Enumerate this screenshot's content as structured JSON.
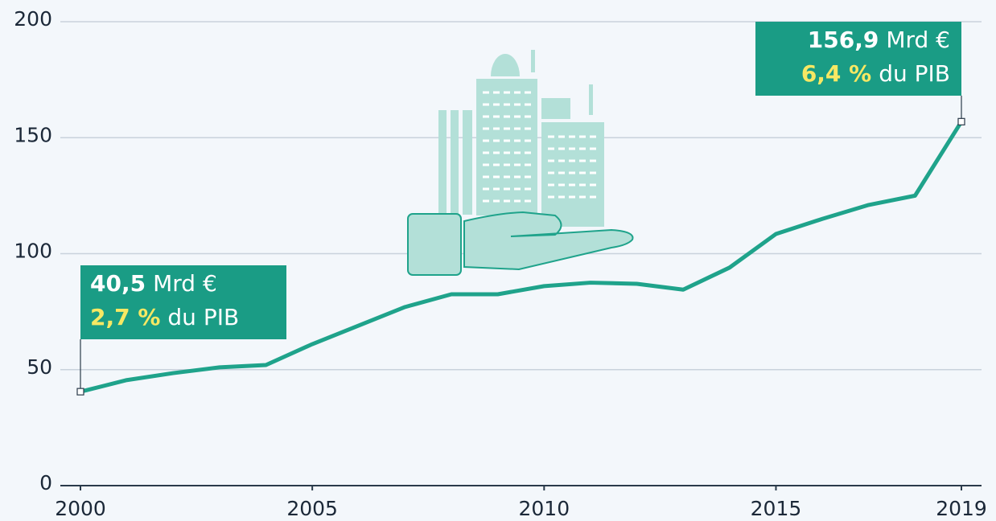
{
  "chart_data": {
    "type": "line",
    "x": [
      2000,
      2001,
      2002,
      2003,
      2004,
      2005,
      2006,
      2007,
      2008,
      2009,
      2010,
      2011,
      2012,
      2013,
      2014,
      2015,
      2016,
      2017,
      2018,
      2019
    ],
    "values": [
      40.5,
      45.5,
      48.5,
      51,
      52,
      61,
      69,
      77,
      82.5,
      82.5,
      86,
      87.5,
      87,
      84.5,
      94,
      108.5,
      115,
      121,
      125,
      156.9
    ],
    "value_labels": [
      "40,5",
      null,
      null,
      null,
      null,
      null,
      null,
      null,
      null,
      null,
      null,
      null,
      null,
      null,
      null,
      null,
      null,
      null,
      null,
      "156,9"
    ],
    "annotations": [
      {
        "unit": "Mrd €",
        "share": "2,7 %",
        "share_unit": "du PIB"
      },
      {
        "unit": "Mrd €",
        "share": "6,4 %",
        "share_unit": "du PIB"
      }
    ],
    "color": "#1fa38b",
    "xlim": [
      2000,
      2019
    ],
    "xticks": [
      2000,
      2005,
      2010,
      2015,
      2019
    ],
    "ylim": [
      0,
      200
    ],
    "yticks": [
      0,
      50,
      100,
      150,
      200
    ],
    "grid": true
  }
}
